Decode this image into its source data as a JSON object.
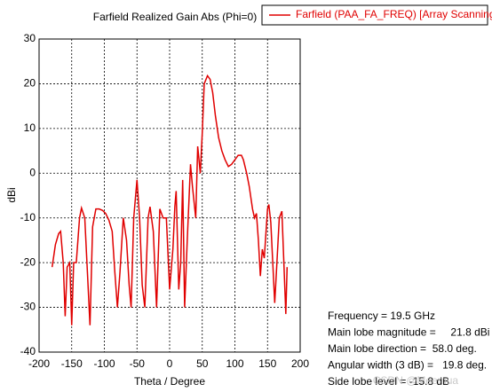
{
  "chart_data": {
    "type": "line",
    "title": "Farfield Realized Gain Abs (Phi=0)",
    "x_label": "Theta / Degree",
    "y_label": "dBi",
    "x": [
      -180,
      -175,
      -170,
      -167,
      -163,
      -160,
      -157,
      -153,
      -150,
      -147,
      -143,
      -138,
      -135,
      -130,
      -126,
      -122,
      -118,
      -113,
      -108,
      -103,
      -98,
      -93,
      -88,
      -84,
      -80,
      -76,
      -71,
      -66,
      -62,
      -59,
      -55,
      -50,
      -46,
      -42,
      -38,
      -33,
      -30,
      -25,
      -20,
      -15,
      -10,
      -5,
      0,
      5,
      8,
      10,
      14,
      17,
      20,
      23,
      27,
      32,
      35,
      40,
      43,
      47,
      50,
      53,
      58,
      62,
      66,
      70,
      75,
      80,
      85,
      90,
      95,
      100,
      105,
      110,
      113,
      118,
      122,
      127,
      130,
      133,
      136,
      139,
      142,
      145,
      150,
      152,
      155,
      158,
      161,
      164,
      168,
      172,
      175,
      178,
      180
    ],
    "series": [
      {
        "name": "Farfield (PAA_FA_FREQ) [Array Scanning]",
        "color": "#e00000",
        "values": [
          -21,
          -16,
          -13.5,
          -13,
          -20,
          -32,
          -21,
          -20,
          -34,
          -20,
          -20,
          -10,
          -7.8,
          -10,
          -22,
          -34,
          -12,
          -8,
          -8,
          -8.3,
          -9,
          -10.5,
          -13,
          -22,
          -30,
          -22,
          -10,
          -15,
          -25,
          -30,
          -10,
          -1.5,
          -10,
          -25,
          -30,
          -10,
          -7.5,
          -13,
          -30,
          -8,
          -10,
          -10,
          -26,
          -17,
          -7.5,
          -4,
          -26,
          -20,
          -1.5,
          -30,
          -15,
          2,
          -3,
          -10,
          6,
          0,
          9,
          20,
          21.8,
          21,
          18,
          13,
          8,
          5,
          3,
          1.5,
          2,
          3,
          4,
          4,
          3,
          0,
          -3,
          -8,
          -10,
          -9,
          -15,
          -23,
          -17,
          -19,
          -8,
          -7,
          -11,
          -20,
          -29,
          -21,
          -10,
          -8.5,
          -20,
          -31.5,
          -21
        ]
      }
    ],
    "xlim": [
      -200,
      200
    ],
    "xticks": [
      -200,
      -150,
      -100,
      -50,
      0,
      50,
      100,
      150,
      200
    ],
    "ylim": [
      -40,
      30
    ],
    "yticks": [
      -40,
      -30,
      -20,
      -10,
      0,
      10,
      20,
      30
    ],
    "grid": true,
    "annotations": [
      "Frequency = 19.5 GHz",
      "Main lobe magnitude =     21.8 dBi",
      "Main lobe direction =  58.0 deg.",
      "Angular width (3 dB) =   19.8 deg.",
      "Side lobe level = -15.8 dB"
    ],
    "watermark": "CSDN @Meemua"
  }
}
